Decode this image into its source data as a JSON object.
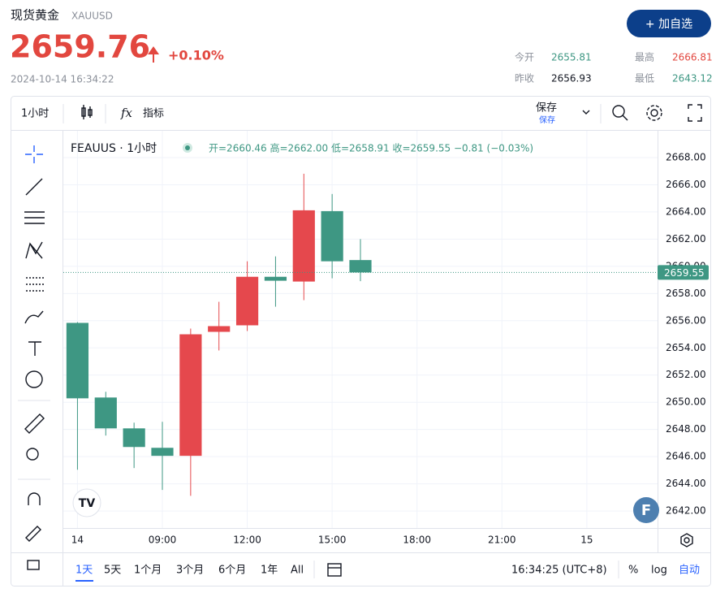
{
  "header": {
    "title": "现货黄金",
    "symbol": "XAUUSD",
    "price": "2659.76",
    "change": "+0.10%",
    "time": "2024-10-14 16:34:22",
    "button": "+ 加自选",
    "stats": [
      {
        "label": "今开",
        "value": "2655.81"
      },
      {
        "label": "最高",
        "value": "2666.81"
      },
      {
        "label": "昨收",
        "value": "2656.93"
      },
      {
        "label": "最低",
        "value": "2643.12"
      }
    ]
  },
  "toolbar": {
    "interval": "1小时",
    "indicators": "指标",
    "save": "保存",
    "save_sub": "保存"
  },
  "chart_data": {
    "type": "candlestick",
    "legend_title": "FEAUUS · 1小时",
    "legend_values": "开=2660.46 高=2662.00 低=2658.91 收=2659.55 −0.81 (−0.03%)",
    "x": [
      6,
      7,
      8,
      9,
      10,
      11,
      12,
      13,
      14,
      15,
      16
    ],
    "open": [
      2655.84,
      2650.35,
      2648.08,
      2646.65,
      2646.06,
      2655.18,
      2655.66,
      2659.23,
      2658.88,
      2664.06,
      2660.46
    ],
    "high": [
      2655.9,
      2650.77,
      2648.5,
      2648.56,
      2655.42,
      2657.39,
      2660.37,
      2660.73,
      2666.81,
      2665.32,
      2662.0
    ],
    "low": [
      2645.04,
      2647.55,
      2645.16,
      2643.55,
      2643.12,
      2653.81,
      2655.24,
      2657.03,
      2657.51,
      2659.12,
      2658.91
    ],
    "close": [
      2650.29,
      2648.08,
      2646.71,
      2646.06,
      2655.0,
      2655.6,
      2659.23,
      2658.94,
      2664.12,
      2660.37,
      2659.55
    ],
    "up_color": "#e5484d",
    "down_color": "#3e9783",
    "xlim": [
      5.5,
      26.5
    ],
    "xticks": [
      {
        "value": 6,
        "label": "14"
      },
      {
        "value": 9,
        "label": "09:00"
      },
      {
        "value": 12,
        "label": "12:00"
      },
      {
        "value": 15,
        "label": "15:00"
      },
      {
        "value": 18,
        "label": "18:00"
      },
      {
        "value": 21,
        "label": "21:00"
      },
      {
        "value": 24,
        "label": "15"
      }
    ],
    "ylim": [
      2640.75,
      2669.97
    ],
    "yticks": [
      {
        "value": 2642,
        "label": "2642.00"
      },
      {
        "value": 2644,
        "label": "2644.00"
      },
      {
        "value": 2646,
        "label": "2646.00"
      },
      {
        "value": 2648,
        "label": "2648.00"
      },
      {
        "value": 2650,
        "label": "2650.00"
      },
      {
        "value": 2652,
        "label": "2652.00"
      },
      {
        "value": 2654,
        "label": "2654.00"
      },
      {
        "value": 2656,
        "label": "2656.00"
      },
      {
        "value": 2658,
        "label": "2658.00"
      },
      {
        "value": 2660,
        "label": "2660.00"
      },
      {
        "value": 2662,
        "label": "2662.00"
      },
      {
        "value": 2664,
        "label": "2664.00"
      },
      {
        "value": 2666,
        "label": "2666.00"
      },
      {
        "value": 2668,
        "label": "2668.00"
      }
    ],
    "grid": true
  },
  "bottom": {
    "ranges": [
      "1天",
      "5天",
      "1个月",
      "3个月",
      "6个月",
      "1年",
      "All"
    ],
    "clock": "16:34:25 (UTC+8)",
    "percent": "%",
    "log": "log",
    "auto": "自动"
  }
}
